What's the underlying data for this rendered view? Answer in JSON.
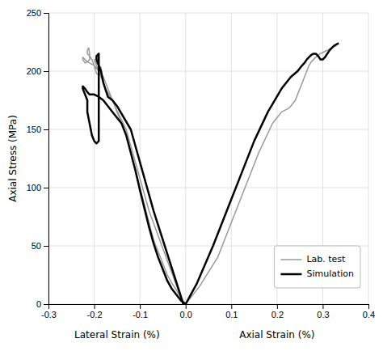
{
  "chart_data": {
    "type": "line",
    "ylabel": "Axial Stress (MPa)",
    "annotations": [
      {
        "text": "Lateral Strain (%)"
      },
      {
        "text": "Axial Strain (%)"
      }
    ],
    "xlim": [
      -0.3,
      0.4
    ],
    "ylim": [
      0,
      250
    ],
    "xticks": [
      -0.3,
      -0.2,
      -0.1,
      {
        "value": 0,
        "label": "0.0"
      },
      0.1,
      0.2,
      0.3,
      0.4
    ],
    "yticks": [
      0,
      50,
      100,
      150,
      200,
      250
    ],
    "grid": true,
    "legend": "lower right",
    "series": [
      {
        "name": "Lab. test",
        "color": "#999999",
        "x": [
          -0.005,
          -0.08,
          -0.13,
          -0.155,
          -0.16,
          -0.165,
          -0.175,
          -0.185,
          -0.19,
          -0.195,
          -0.2,
          -0.195,
          -0.19,
          -0.185,
          -0.185,
          -0.19,
          -0.195,
          -0.2,
          -0.205,
          -0.21,
          -0.215,
          -0.215,
          -0.212,
          -0.21,
          -0.21,
          -0.215,
          -0.22,
          -0.225,
          -0.225,
          -0.22,
          -0.215,
          -0.21,
          -0.2,
          -0.19,
          -0.18,
          -0.17,
          -0.16,
          -0.15,
          -0.14,
          -0.13,
          -0.12,
          -0.11,
          -0.1,
          -0.09,
          -0.08,
          -0.07,
          -0.06,
          -0.05,
          -0.04,
          -0.03,
          -0.02,
          -0.01,
          0.0
        ],
        "values": [
          0,
          80,
          150,
          170,
          175,
          178,
          185,
          195,
          200,
          205,
          210,
          207,
          205,
          203,
          200,
          197,
          198,
          205,
          210,
          213,
          215,
          218,
          220,
          215,
          210,
          208,
          207,
          210,
          212,
          210,
          208,
          207,
          205,
          200,
          195,
          185,
          175,
          165,
          155,
          145,
          130,
          115,
          100,
          85,
          70,
          55,
          45,
          35,
          25,
          18,
          12,
          5,
          0
        ]
      },
      {
        "name": "Simulation",
        "color": "#000000",
        "x": [
          -0.005,
          -0.07,
          -0.12,
          -0.15,
          -0.16,
          -0.17,
          -0.18,
          -0.185,
          -0.19,
          -0.195,
          -0.195,
          -0.19,
          -0.19,
          -0.195,
          -0.2,
          -0.205,
          -0.21,
          -0.215,
          -0.215,
          -0.215,
          -0.22,
          -0.225,
          -0.225,
          -0.22,
          -0.215,
          -0.21,
          -0.2,
          -0.19,
          -0.18,
          -0.16,
          -0.14,
          -0.13,
          -0.12,
          -0.11,
          -0.1,
          -0.09,
          -0.08,
          -0.07,
          -0.06,
          -0.05,
          -0.04,
          -0.03,
          -0.02,
          -0.01,
          0.0
        ],
        "values": [
          0,
          80,
          150,
          170,
          175,
          178,
          190,
          200,
          205,
          210,
          213,
          215,
          140,
          138,
          140,
          145,
          155,
          165,
          170,
          175,
          180,
          185,
          187,
          185,
          182,
          180,
          180,
          178,
          175,
          165,
          155,
          145,
          130,
          115,
          98,
          82,
          66,
          52,
          40,
          30,
          20,
          13,
          8,
          3,
          0
        ]
      },
      {
        "name": "Lab. test",
        "color": "#999999",
        "x": [
          0.0,
          0.03,
          0.07,
          0.1,
          0.13,
          0.16,
          0.19,
          0.21,
          0.225,
          0.23,
          0.24,
          0.245,
          0.25,
          0.255,
          0.26,
          0.265,
          0.27,
          0.275,
          0.28,
          0.285,
          0.29,
          0.295,
          0.3,
          0.305,
          0.31,
          0.315,
          0.32,
          0.325,
          0.33
        ],
        "values": [
          0,
          15,
          40,
          70,
          100,
          130,
          155,
          165,
          168,
          170,
          175,
          180,
          185,
          190,
          195,
          200,
          205,
          208,
          210,
          212,
          214,
          215,
          216,
          217,
          218,
          219,
          220,
          221,
          222
        ]
      },
      {
        "name": "Simulation",
        "color": "#000000",
        "x": [
          0.0,
          0.025,
          0.06,
          0.09,
          0.12,
          0.15,
          0.18,
          0.21,
          0.23,
          0.245,
          0.255,
          0.26,
          0.265,
          0.27,
          0.275,
          0.28,
          0.285,
          0.29,
          0.295,
          0.3,
          0.305,
          0.31,
          0.315,
          0.32,
          0.325,
          0.33,
          0.335
        ],
        "values": [
          0,
          18,
          50,
          80,
          110,
          140,
          165,
          185,
          195,
          200,
          205,
          207,
          210,
          212,
          214,
          215,
          215,
          213,
          210,
          210,
          212,
          215,
          218,
          220,
          222,
          223,
          224
        ]
      }
    ]
  }
}
